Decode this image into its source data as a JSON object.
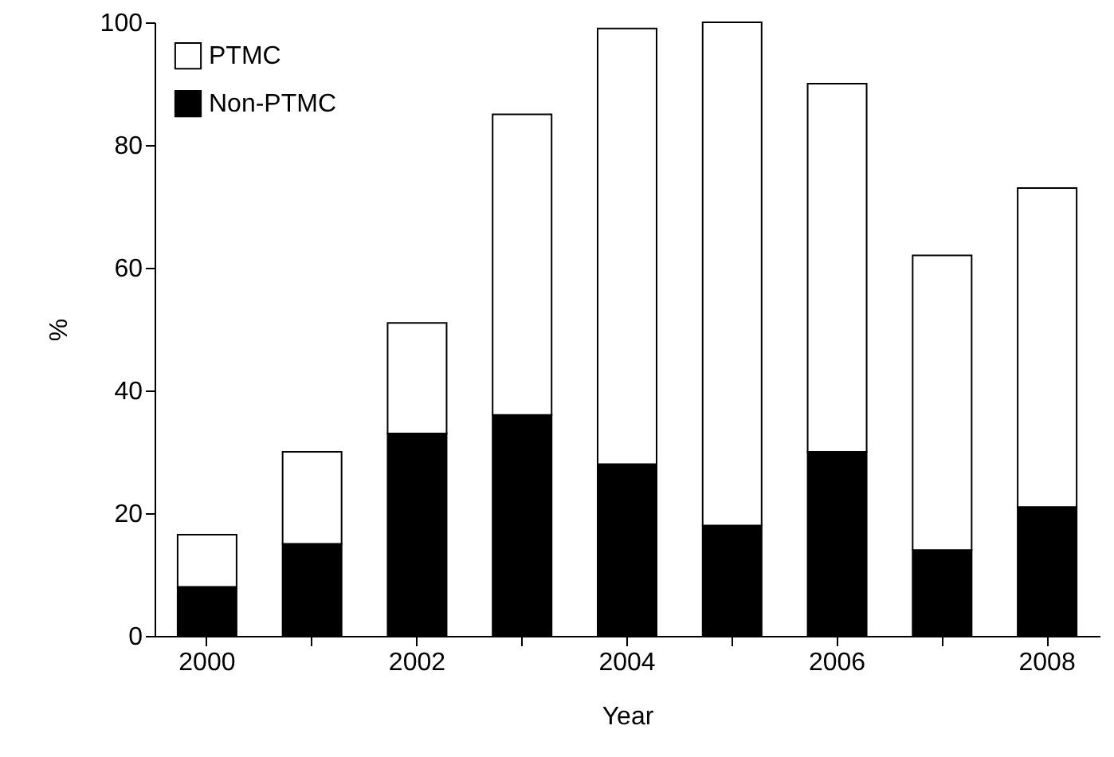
{
  "chart_data": {
    "type": "bar",
    "stacked": true,
    "xlabel": "Year",
    "ylabel": "%",
    "categories": [
      "2000",
      null,
      "2002",
      null,
      "2004",
      null,
      "2006",
      null,
      "2008"
    ],
    "series": [
      {
        "name": "Non-PTMC",
        "color": "#000000",
        "values": [
          8,
          15,
          33,
          36,
          28,
          18,
          30,
          14,
          21
        ]
      },
      {
        "name": "PTMC",
        "color": "#ffffff",
        "values": [
          8.5,
          15,
          18,
          49,
          71,
          82,
          60,
          48,
          52
        ]
      }
    ],
    "ylim": [
      0,
      100
    ],
    "yticks": [
      0,
      20,
      40,
      60,
      80,
      100
    ],
    "grid": false,
    "legend": "top left"
  }
}
